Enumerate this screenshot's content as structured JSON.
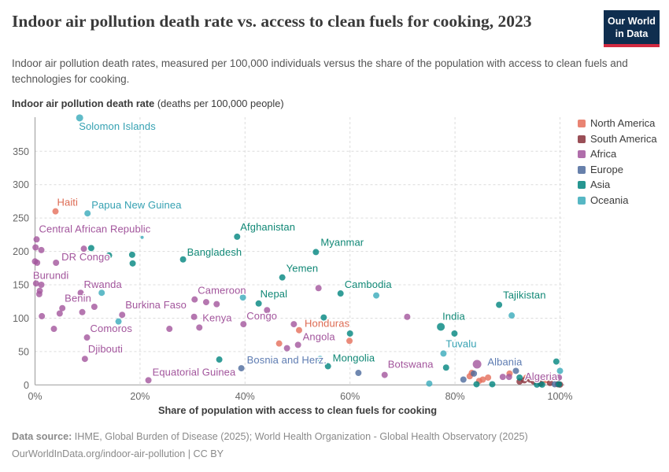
{
  "header": {
    "title": "Indoor air pollution death rate vs. access to clean fuels for cooking, 2023",
    "subtitle": "Indoor air pollution death rates, measured per 100,000 individuals versus the share of the population with access to clean fuels and technologies for cooking.",
    "logo_line1": "Our World",
    "logo_line2": "in Data"
  },
  "axes": {
    "y_title_bold": "Indoor air pollution death rate",
    "y_title_rest": " (deaths per 100,000 people)",
    "x_title": "Share of population with access to clean fuels for cooking",
    "y_ticks": [
      350,
      300,
      250,
      200,
      150,
      100,
      50,
      0
    ],
    "x_ticks": [
      {
        "p": 0,
        "label": "0%"
      },
      {
        "p": 20,
        "label": "20%"
      },
      {
        "p": 40,
        "label": "40%"
      },
      {
        "p": 60,
        "label": "60%"
      },
      {
        "p": 80,
        "label": "80%"
      },
      {
        "p": 100,
        "label": "100%"
      }
    ]
  },
  "footer": {
    "line1_bold": "Data source:",
    "line1_rest": " IHME, Global Burden of Disease (2025); World Health Organization - Global Health Observatory (2025)",
    "line2": "OurWorldInData.org/indoor-air-pollution | CC BY"
  },
  "chart_data": {
    "type": "scatter",
    "title": "Indoor air pollution death rate vs. access to clean fuels for cooking, 2023",
    "xlabel": "Share of population with access to clean fuels for cooking (%)",
    "ylabel": "Indoor air pollution death rate (deaths per 100,000 people)",
    "xlim": [
      0,
      100
    ],
    "ylim": [
      0,
      400
    ],
    "grid": true,
    "legend_position": "right",
    "series": [
      {
        "name": "North America",
        "color": "#E56E5A",
        "text_color": "#DD6A52",
        "points": [
          {
            "x": 3.9,
            "v": 260,
            "label": "Haiti",
            "dx": 2,
            "dy": -7
          },
          {
            "x": 46.5,
            "v": 62
          },
          {
            "x": 50.3,
            "v": 82,
            "label": "Honduras",
            "dx": 7,
            "dy": -4
          },
          {
            "x": 59.9,
            "v": 66
          },
          {
            "x": 82.8,
            "v": 13
          },
          {
            "x": 83.2,
            "v": 18
          },
          {
            "x": 84.6,
            "v": 6
          },
          {
            "x": 85.3,
            "v": 8
          },
          {
            "x": 86.3,
            "v": 11
          },
          {
            "x": 90.4,
            "v": 17
          },
          {
            "x": 93.6,
            "v": 11
          },
          {
            "x": 97.3,
            "v": 7
          }
        ]
      },
      {
        "name": "South America",
        "color": "#883039",
        "text_color": "#883039",
        "points": [
          {
            "x": 92.3,
            "v": 5
          },
          {
            "x": 93.2,
            "v": 7
          },
          {
            "x": 94.3,
            "v": 8
          },
          {
            "x": 95.0,
            "v": 5
          },
          {
            "x": 96.3,
            "v": 2
          },
          {
            "x": 98.1,
            "v": 3
          },
          {
            "x": 99.6,
            "v": 1
          },
          {
            "x": 100,
            "v": 0.5
          }
        ]
      },
      {
        "name": "Africa",
        "color": "#A2559C",
        "text_color": "#A2559C",
        "points": [
          {
            "x": 0.3,
            "v": 218,
            "label": "Central African Republic",
            "dx": 3,
            "dy": -9
          },
          {
            "x": 0.1,
            "v": 206
          },
          {
            "x": 1.2,
            "v": 202
          },
          {
            "x": 9.3,
            "v": 204
          },
          {
            "x": 0,
            "v": 185
          },
          {
            "x": 0.4,
            "v": 183
          },
          {
            "x": 4.0,
            "v": 183,
            "label": "DR Congo",
            "dx": 7,
            "dy": -3
          },
          {
            "x": 0.2,
            "v": 152,
            "label": "Burundi",
            "dx": -4,
            "dy": -6
          },
          {
            "x": 1.2,
            "v": 150
          },
          {
            "x": 0.9,
            "v": 141
          },
          {
            "x": 0.8,
            "v": 136
          },
          {
            "x": 8.7,
            "v": 138,
            "label": "Rwanda",
            "dx": 4,
            "dy": -6
          },
          {
            "x": 5.2,
            "v": 115,
            "label": "Benin",
            "dx": 3,
            "dy": -8
          },
          {
            "x": 4.7,
            "v": 107
          },
          {
            "x": 9.0,
            "v": 109
          },
          {
            "x": 11.3,
            "v": 117
          },
          {
            "x": 1.3,
            "v": 103
          },
          {
            "x": 3.6,
            "v": 84
          },
          {
            "x": 16.6,
            "v": 105,
            "label": "Burkina Faso",
            "dx": 4,
            "dy": -8
          },
          {
            "x": 9.9,
            "v": 71,
            "label": "Comoros",
            "dx": 4,
            "dy": -7
          },
          {
            "x": 9.5,
            "v": 39,
            "label": "Djibouti",
            "dx": 4,
            "dy": -8
          },
          {
            "x": 21.6,
            "v": 7,
            "label": "Equatorial Guinea",
            "dx": 5,
            "dy": -6
          },
          {
            "x": 25.6,
            "v": 84
          },
          {
            "x": 30.4,
            "v": 128,
            "label": "Cameroon",
            "dx": 4,
            "dy": -7
          },
          {
            "x": 32.6,
            "v": 124
          },
          {
            "x": 34.6,
            "v": 121
          },
          {
            "x": 30.3,
            "v": 102
          },
          {
            "x": 31.3,
            "v": 86,
            "label": "Kenya",
            "dx": 4,
            "dy": -8
          },
          {
            "x": 39.7,
            "v": 91,
            "label": "Congo",
            "dx": 4,
            "dy": -6
          },
          {
            "x": 44.2,
            "v": 112
          },
          {
            "x": 49.3,
            "v": 91
          },
          {
            "x": 48.0,
            "v": 55
          },
          {
            "x": 50.1,
            "v": 60,
            "label": "Angola",
            "dx": 6,
            "dy": -6
          },
          {
            "x": 54.0,
            "v": 145
          },
          {
            "x": 70.9,
            "v": 102
          },
          {
            "x": 66.6,
            "v": 15,
            "label": "Botswana",
            "dx": 4,
            "dy": -9
          },
          {
            "x": 84.2,
            "v": 31,
            "r": 5.5
          },
          {
            "x": 89.1,
            "v": 12
          },
          {
            "x": 90.3,
            "v": 12
          },
          {
            "x": 95.6,
            "v": 9
          },
          {
            "x": 99.8,
            "v": 11,
            "label": "Algeria",
            "a": "end",
            "dx": -2,
            "dy": 3
          }
        ]
      },
      {
        "name": "Europe",
        "color": "#4C6A9C",
        "text_color": "#5E7CB2",
        "points": [
          {
            "x": 39.3,
            "v": 25,
            "label": "Bosnia and Herz.",
            "dx": 7,
            "dy": -6
          },
          {
            "x": 61.6,
            "v": 18
          },
          {
            "x": 81.6,
            "v": 8
          },
          {
            "x": 83.6,
            "v": 17
          },
          {
            "x": 91.6,
            "v": 21,
            "label": "Albania",
            "a": "end",
            "dx": 8,
            "dy": -7
          },
          {
            "x": 99.0,
            "v": 1
          }
        ]
      },
      {
        "name": "Asia",
        "color": "#00847E",
        "text_color": "#0F8775",
        "points": [
          {
            "x": 10.7,
            "v": 205
          },
          {
            "x": 14.1,
            "v": 194
          },
          {
            "x": 18.5,
            "v": 195
          },
          {
            "x": 18.6,
            "v": 182
          },
          {
            "x": 28.2,
            "v": 188,
            "label": "Bangladesh",
            "dx": 5,
            "dy": -5
          },
          {
            "x": 38.5,
            "v": 222,
            "label": "Afghanistan",
            "dx": 4,
            "dy": -8
          },
          {
            "x": 47.1,
            "v": 161,
            "label": "Yemen",
            "dx": 5,
            "dy": -7
          },
          {
            "x": 42.6,
            "v": 122,
            "label": "Nepal",
            "dx": 2,
            "dy": -8
          },
          {
            "x": 53.5,
            "v": 199,
            "label": "Myanmar",
            "dx": 6,
            "dy": -8
          },
          {
            "x": 58.2,
            "v": 137,
            "label": "Cambodia",
            "dx": 5,
            "dy": -7
          },
          {
            "x": 55.0,
            "v": 101
          },
          {
            "x": 60.0,
            "v": 77
          },
          {
            "x": 35.1,
            "v": 38
          },
          {
            "x": 55.8,
            "v": 28,
            "label": "Mongolia",
            "dx": 6,
            "dy": -6
          },
          {
            "x": 78.3,
            "v": 26
          },
          {
            "x": 77.3,
            "v": 87,
            "label": "India",
            "dx": 2,
            "dy": -9,
            "r": 5
          },
          {
            "x": 79.9,
            "v": 77
          },
          {
            "x": 88.4,
            "v": 120,
            "label": "Tajikistan",
            "dx": 5,
            "dy": -8
          },
          {
            "x": 84.1,
            "v": 1
          },
          {
            "x": 87.1,
            "v": 1
          },
          {
            "x": 92.3,
            "v": 11
          },
          {
            "x": 95.6,
            "v": 0.5
          },
          {
            "x": 96.6,
            "v": 0.5
          },
          {
            "x": 99.3,
            "v": 35
          },
          {
            "x": 99.8,
            "v": 1
          }
        ]
      },
      {
        "name": "Oceania",
        "color": "#38AABA",
        "text_color": "#35A1B2",
        "points": [
          {
            "x": 8.5,
            "v": 400,
            "label": "Solomon Islands",
            "dx": -1,
            "dy": 15,
            "r": 4.5
          },
          {
            "x": 10.0,
            "v": 257,
            "label": "Papua New Guinea",
            "dx": 5,
            "dy": -6
          },
          {
            "x": 20.4,
            "v": 221,
            "r": 2
          },
          {
            "x": 12.7,
            "v": 138
          },
          {
            "x": 15.9,
            "v": 95
          },
          {
            "x": 39.6,
            "v": 131
          },
          {
            "x": 54.3,
            "v": 39
          },
          {
            "x": 65.0,
            "v": 134
          },
          {
            "x": 75.1,
            "v": 2
          },
          {
            "x": 77.8,
            "v": 47,
            "label": "Tuvalu",
            "dx": 3,
            "dy": -8
          },
          {
            "x": 90.8,
            "v": 104
          },
          {
            "x": 100,
            "v": 21
          }
        ]
      }
    ]
  }
}
